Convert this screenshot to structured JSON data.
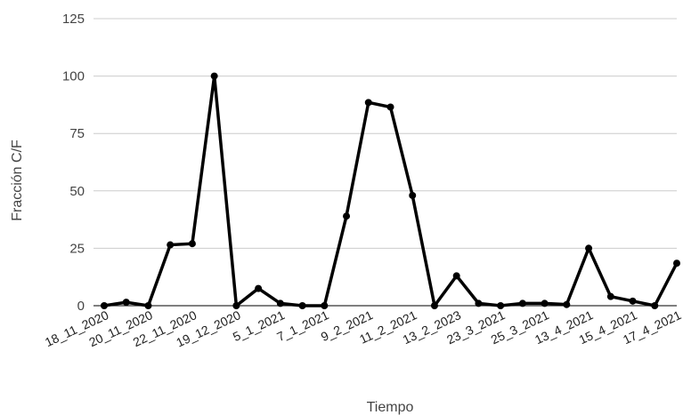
{
  "chart_data": {
    "type": "line",
    "title": "",
    "xlabel": "Tiempo",
    "ylabel": "Fracción C/F",
    "ylim": [
      0,
      125
    ],
    "yticks": [
      0,
      25,
      50,
      75,
      100,
      125
    ],
    "grid": true,
    "legend": "none",
    "line_color": "#000000",
    "categories": [
      "18_11_2020",
      "",
      "20_11_2020",
      "",
      "22_11_2020",
      "",
      "19_12_2020",
      "",
      "5_1_2021",
      "",
      "7_1_2021",
      "",
      "9_2_2021",
      "",
      "11_2_2021",
      "",
      "13_2_2023",
      "",
      "23_3_2021",
      "",
      "25_3_2021",
      "",
      "13_4_2021",
      "",
      "15_4_2021",
      "",
      "17_4_2021"
    ],
    "tick_labels": [
      "18_11_2020",
      "20_11_2020",
      "22_11_2020",
      "19_12_2020",
      "5_1_2021",
      "7_1_2021",
      "9_2_2021",
      "11_2_2021",
      "13_2_2023",
      "23_3_2021",
      "25_3_2021",
      "13_4_2021",
      "15_4_2021",
      "17_4_2021"
    ],
    "series": [
      {
        "values": [
          0,
          1.5,
          0,
          26.5,
          27,
          100,
          0,
          7.5,
          1,
          0,
          0,
          39,
          88.5,
          86.5,
          48,
          0,
          13,
          1,
          0,
          1,
          1,
          0.5,
          25,
          4,
          2,
          0,
          18.5
        ]
      }
    ]
  }
}
